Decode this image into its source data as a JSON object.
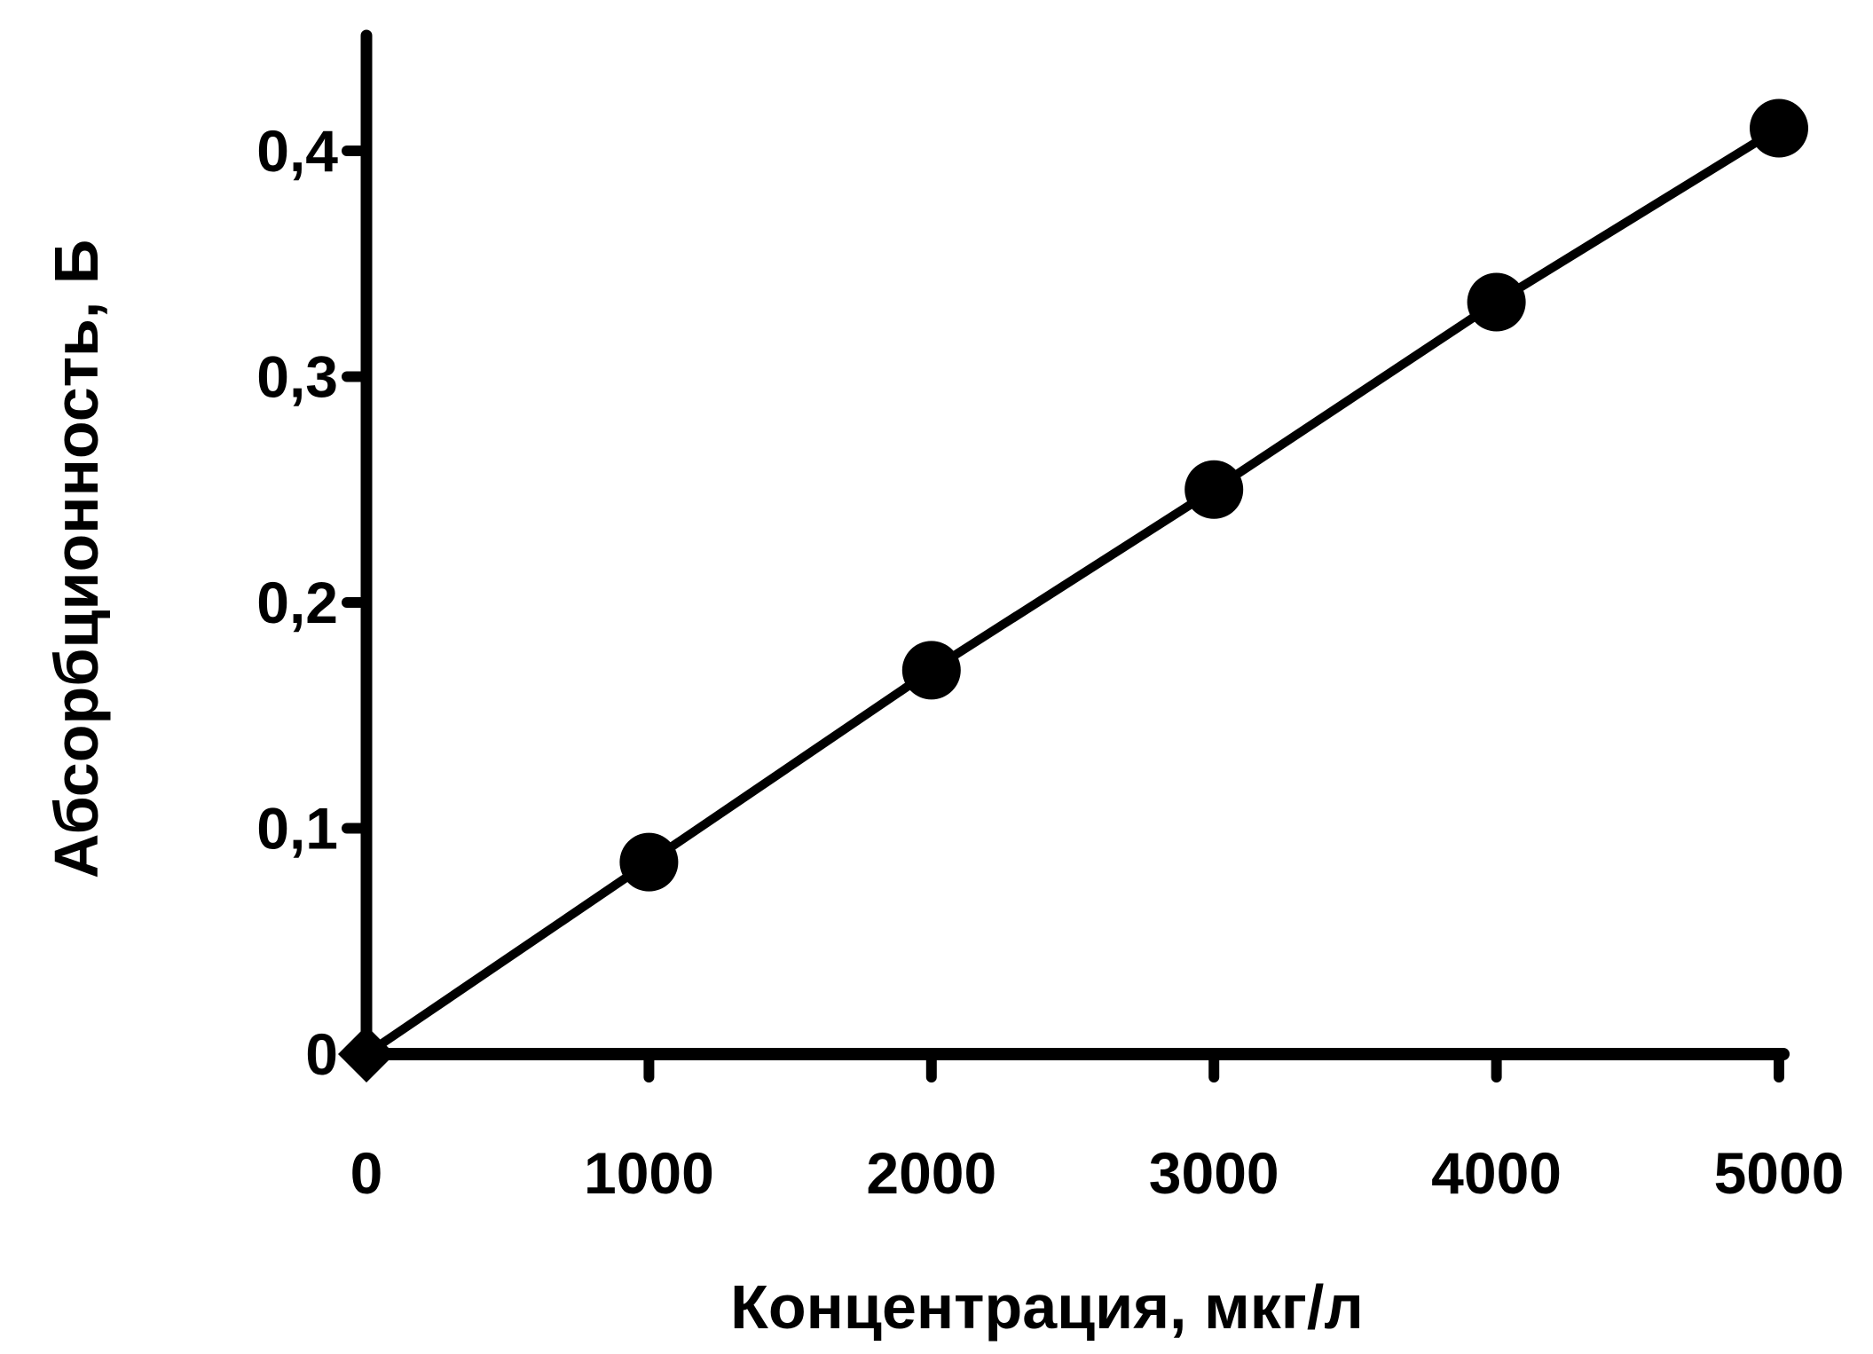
{
  "chart_data": {
    "type": "line",
    "title": "",
    "xlabel": "Концентрация, мкг/л",
    "ylabel": "Абсорбционность, Б",
    "xlim": [
      0,
      5000
    ],
    "ylim": [
      0,
      0.45
    ],
    "x_ticks": [
      {
        "value": 0,
        "label": "0"
      },
      {
        "value": 1000,
        "label": "1000"
      },
      {
        "value": 2000,
        "label": "2000"
      },
      {
        "value": 3000,
        "label": "3000"
      },
      {
        "value": 4000,
        "label": "4000"
      },
      {
        "value": 5000,
        "label": "5000"
      }
    ],
    "y_ticks": [
      {
        "value": 0,
        "label": "0"
      },
      {
        "value": 0.1,
        "label": "0,1"
      },
      {
        "value": 0.2,
        "label": "0,2"
      },
      {
        "value": 0.3,
        "label": "0,3"
      },
      {
        "value": 0.4,
        "label": "0,4"
      }
    ],
    "grid": false,
    "legend": "none",
    "line_color": "#000000",
    "series": [
      {
        "x": [
          0,
          1000,
          2000,
          3000,
          4000,
          5000
        ],
        "y": [
          0,
          0.085,
          0.17,
          0.25,
          0.333,
          0.41
        ],
        "markers": [
          "diamond",
          "circle",
          "circle",
          "circle",
          "circle",
          "circle"
        ]
      }
    ]
  }
}
